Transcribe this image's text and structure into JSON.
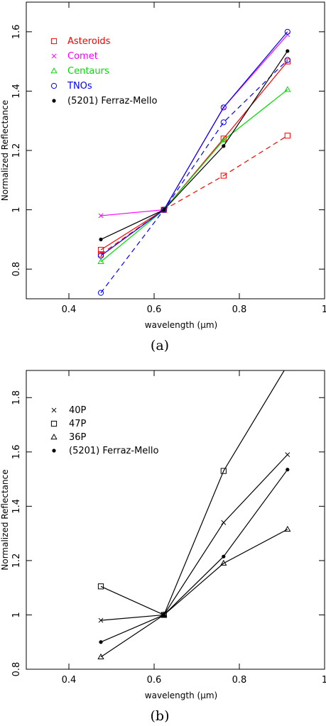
{
  "figure": {
    "caption_a": "(a)",
    "caption_b": "(b)"
  },
  "chart_data": [
    {
      "type": "line",
      "caption": "(a)",
      "xlabel": "wavelength (μm)",
      "ylabel": "Normalized Reflectance",
      "xlim": [
        0.3,
        1.0
      ],
      "ylim": [
        0.7,
        1.7
      ],
      "xticks": [
        0.4,
        0.6,
        0.8,
        1
      ],
      "xtick_labels": [
        "0.4",
        "0.6",
        "0.8",
        "1"
      ],
      "yticks": [
        0.8,
        1.0,
        1.2,
        1.4,
        1.6
      ],
      "ytick_labels": [
        "0.8",
        "1",
        "1.2",
        "1.4",
        "1.6"
      ],
      "grid": false,
      "legend_position": "top-left",
      "x": [
        0.475,
        0.623,
        0.763,
        0.913
      ],
      "series": [
        {
          "name": "Asteroids",
          "color": "#ff0000",
          "marker": "square",
          "values": [
            0.865,
            1.0,
            1.24,
            1.5
          ]
        },
        {
          "name": "Asteroids",
          "color": "#ff0000",
          "marker": "square",
          "dashed": true,
          "legend": false,
          "values": [
            0.85,
            1.0,
            1.115,
            1.25
          ]
        },
        {
          "name": "Comet",
          "color": "#ff00ff",
          "marker": "x",
          "values": [
            0.98,
            1.0,
            1.345,
            1.59
          ]
        },
        {
          "name": "Centaurs",
          "color": "#00dd00",
          "marker": "triangle",
          "values": [
            0.825,
            1.0,
            1.235,
            1.405
          ]
        },
        {
          "name": "TNOs",
          "color": "#0000ff",
          "marker": "circle",
          "values": [
            0.845,
            1.0,
            1.345,
            1.6
          ]
        },
        {
          "name": "TNOs",
          "color": "#0000ff",
          "marker": "circle",
          "dashed": true,
          "legend": false,
          "values": [
            0.72,
            1.0,
            1.295,
            1.505
          ]
        },
        {
          "name": "(5201) Ferraz-Mello",
          "color": "#000000",
          "marker": "dot",
          "values": [
            0.9,
            1.0,
            1.215,
            1.535
          ]
        }
      ]
    },
    {
      "type": "line",
      "caption": "(b)",
      "xlabel": "wavelength (μm)",
      "ylabel": "Normalized Reflectance",
      "xlim": [
        0.3,
        1.0
      ],
      "ylim": [
        0.8,
        1.9
      ],
      "xticks": [
        0.4,
        0.6,
        0.8,
        1
      ],
      "xtick_labels": [
        "0.4",
        "0.6",
        "0.8",
        "1"
      ],
      "yticks": [
        0.8,
        1.0,
        1.2,
        1.4,
        1.6,
        1.8
      ],
      "ytick_labels": [
        "0.8",
        "1",
        "1.2",
        "1.4",
        "1.6",
        "1.8"
      ],
      "grid": false,
      "legend_position": "top-left",
      "x": [
        0.475,
        0.623,
        0.763,
        0.913
      ],
      "series": [
        {
          "name": "40P",
          "color": "#000000",
          "marker": "x",
          "values": [
            0.98,
            1.0,
            1.34,
            1.59
          ]
        },
        {
          "name": "47P",
          "color": "#000000",
          "marker": "square",
          "values": [
            1.105,
            1.0,
            1.53,
            1.92
          ]
        },
        {
          "name": "36P",
          "color": "#000000",
          "marker": "triangle",
          "values": [
            0.845,
            1.0,
            1.19,
            1.315
          ]
        },
        {
          "name": "(5201) Ferraz-Mello",
          "color": "#000000",
          "marker": "dot",
          "values": [
            0.9,
            1.0,
            1.215,
            1.535
          ]
        }
      ]
    }
  ]
}
